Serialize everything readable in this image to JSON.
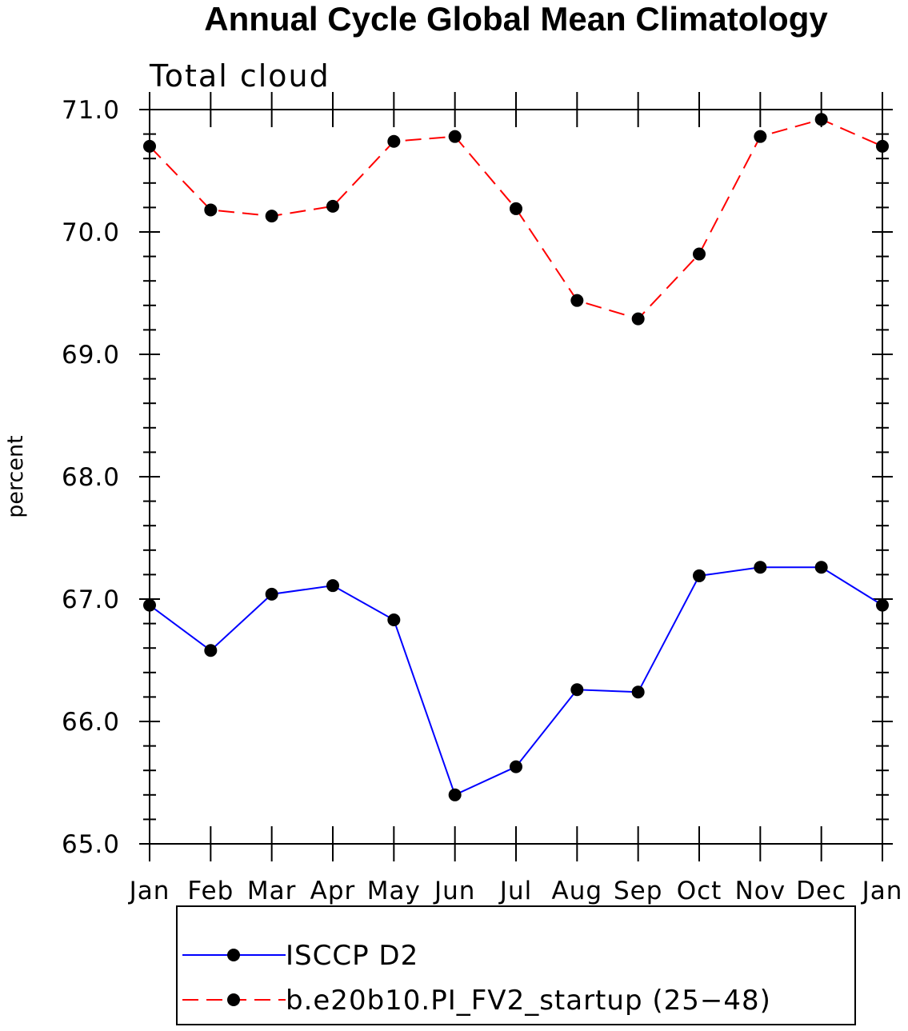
{
  "chart_data": {
    "type": "line",
    "title": "Annual Cycle Global Mean Climatology",
    "subtitle": "Total cloud",
    "xlabel": "",
    "ylabel": "percent",
    "categories": [
      "Jan",
      "Feb",
      "Mar",
      "Apr",
      "May",
      "Jun",
      "Jul",
      "Aug",
      "Sep",
      "Oct",
      "Nov",
      "Dec",
      "Jan"
    ],
    "ylim": [
      65.0,
      71.0
    ],
    "yticks": [
      "65.0",
      "66.0",
      "67.0",
      "68.0",
      "69.0",
      "70.0",
      "71.0"
    ],
    "grid": false,
    "legend_position": "bottom",
    "series": [
      {
        "name": "ISCCP D2",
        "color": "#0000ff",
        "line_style": "solid",
        "marker": "filled-circle",
        "values": [
          66.95,
          66.58,
          67.04,
          67.11,
          66.83,
          65.4,
          65.63,
          66.26,
          66.24,
          67.19,
          67.26,
          67.26,
          66.95
        ]
      },
      {
        "name": "b.e20b10.PI_FV2_startup (25−48)",
        "color": "#ff0000",
        "line_style": "dashed",
        "marker": "filled-circle",
        "values": [
          70.7,
          70.18,
          70.13,
          70.21,
          70.74,
          70.78,
          70.19,
          69.44,
          69.29,
          69.82,
          70.78,
          70.92,
          70.7
        ]
      }
    ]
  }
}
